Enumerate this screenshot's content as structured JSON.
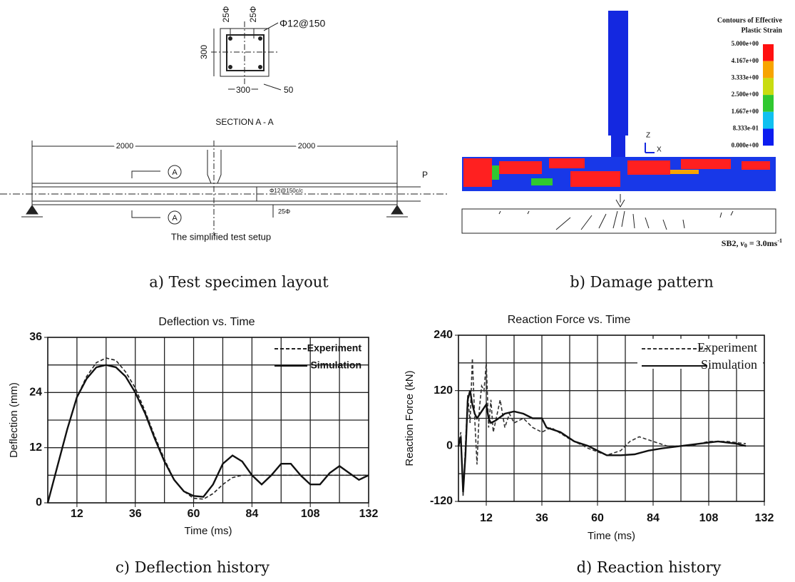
{
  "panel_a": {
    "caption": "a) Test specimen layout",
    "section": {
      "top_bars": [
        "25Φ",
        "25Φ"
      ],
      "stirrup": "Φ12@150",
      "height": "300",
      "width": "300",
      "cover": "50",
      "title": "SECTION A - A"
    },
    "beam": {
      "spans": [
        "2000",
        "2000"
      ],
      "section_marks": [
        "A",
        "A"
      ],
      "load": "P",
      "stirrup": "Φ12@150c/c",
      "bar": "25Φ",
      "title": "The simplified test setup"
    }
  },
  "panel_b": {
    "caption": "b) Damage pattern",
    "legend_title": [
      "Contours of Effective",
      "Plastic Strain"
    ],
    "legend_labels": [
      "5.000e+00",
      "4.167e+00",
      "3.333e+00",
      "2.500e+00",
      "1.667e+00",
      "8.333e-01",
      "0.000e+00"
    ],
    "legend_colors": [
      "#ff1010",
      "#f7a400",
      "#c8dc10",
      "#30c830",
      "#10c0f0",
      "#0c1cf0"
    ],
    "axes": [
      "Z",
      "X"
    ],
    "specimen": {
      "name": "SB2, ",
      "var": "v",
      "sub": "0",
      "rest": " = 3.0ms",
      "sup": "-1"
    }
  },
  "chart_data": [
    {
      "type": "line",
      "title": "Deflection vs. Time",
      "caption": "c) Deflection history",
      "x_label": "Time (ms)",
      "y_label": "Deflection (mm)",
      "xlim": [
        0,
        132
      ],
      "ylim": [
        0,
        36
      ],
      "xticks": [
        12,
        36,
        60,
        84,
        108,
        132
      ],
      "yticks": [
        0,
        12,
        24,
        36
      ],
      "xgrid": [
        12,
        24,
        36,
        48,
        60,
        72,
        84,
        96,
        108,
        120
      ],
      "ygrid": [
        6,
        12,
        18,
        24,
        30
      ],
      "grid": true,
      "legend": "top-right",
      "series": [
        {
          "name": "Experiment",
          "color": "#222222",
          "dash": true,
          "x": [
            0,
            4,
            8,
            12,
            16,
            20,
            24,
            28,
            32,
            36,
            40,
            44,
            48,
            52,
            56,
            60,
            64,
            68,
            72,
            76,
            80,
            84,
            88,
            92,
            96,
            100,
            104,
            108,
            112,
            116,
            120,
            124,
            128,
            132
          ],
          "values": [
            0,
            8,
            16,
            23,
            27.5,
            30.5,
            31.5,
            31,
            28.5,
            25,
            20,
            14.5,
            9.5,
            5,
            2.5,
            1,
            0.8,
            2,
            4,
            5.5,
            6,
            6,
            6,
            6,
            6,
            6,
            6,
            6,
            6,
            6,
            6,
            6,
            6,
            6
          ]
        },
        {
          "name": "Simulation",
          "color": "#111111",
          "dash": false,
          "x": [
            0,
            4,
            8,
            12,
            16,
            20,
            24,
            28,
            32,
            36,
            40,
            44,
            48,
            52,
            56,
            60,
            64,
            68,
            72,
            76,
            80,
            84,
            88,
            92,
            96,
            100,
            104,
            108,
            112,
            116,
            120,
            124,
            128,
            132
          ],
          "values": [
            0,
            8,
            16,
            23,
            27,
            29.5,
            30,
            29.5,
            27.5,
            24,
            19.5,
            14,
            9,
            5,
            2.5,
            1.5,
            1.3,
            4,
            8.5,
            10.3,
            9,
            6,
            4,
            6,
            8.5,
            8.5,
            6,
            4,
            4,
            6.5,
            8,
            6.5,
            5,
            6
          ]
        }
      ]
    },
    {
      "type": "line",
      "title": "Reaction Force vs. Time",
      "caption": "d) Reaction history",
      "x_label": "Time (ms)",
      "y_label": "Reaction Force (kN)",
      "xlim": [
        0,
        132
      ],
      "ylim": [
        -120,
        240
      ],
      "xticks": [
        12,
        36,
        60,
        84,
        108,
        132
      ],
      "yticks": [
        -120,
        0,
        120,
        240
      ],
      "xgrid": [
        12,
        24,
        36,
        48,
        60,
        72,
        84,
        96,
        108,
        120
      ],
      "ygrid": [
        -60,
        0,
        60,
        120,
        180
      ],
      "grid": true,
      "legend": "top-right",
      "series": [
        {
          "name": "Experiment",
          "color": "#333333",
          "dash": true,
          "x": [
            0,
            1,
            2,
            3,
            4,
            5,
            6,
            7,
            8,
            9,
            10,
            11,
            12,
            13,
            14,
            15,
            18,
            20,
            22,
            24,
            28,
            32,
            36,
            40,
            48,
            56,
            64,
            70,
            74,
            78,
            84,
            90,
            100,
            108,
            116,
            124
          ],
          "values": [
            0,
            30,
            -110,
            0,
            110,
            50,
            190,
            60,
            -40,
            80,
            130,
            120,
            180,
            40,
            100,
            30,
            100,
            40,
            70,
            50,
            60,
            40,
            30,
            40,
            15,
            -5,
            -20,
            -10,
            10,
            20,
            10,
            0,
            0,
            10,
            10,
            5
          ]
        },
        {
          "name": "Simulation",
          "color": "#111111",
          "dash": false,
          "x": [
            0,
            1,
            2,
            3,
            4,
            5,
            6,
            7,
            8,
            10,
            12,
            13,
            14,
            16,
            20,
            24,
            28,
            32,
            36,
            38,
            44,
            50,
            56,
            60,
            64,
            70,
            76,
            82,
            88,
            96,
            104,
            112,
            120,
            124
          ],
          "values": [
            0,
            20,
            -100,
            -20,
            100,
            120,
            90,
            70,
            60,
            75,
            90,
            60,
            50,
            55,
            70,
            75,
            70,
            60,
            60,
            40,
            30,
            10,
            0,
            -10,
            -20,
            -20,
            -18,
            -10,
            -5,
            0,
            5,
            10,
            5,
            0
          ]
        }
      ]
    }
  ]
}
